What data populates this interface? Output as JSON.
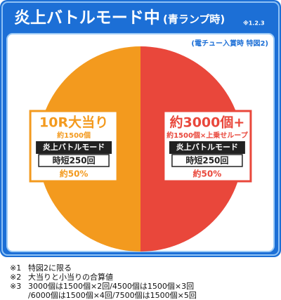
{
  "chart_data": {
    "type": "pie",
    "title": "炎上バトルモード中",
    "title_sub": "(青ランプ時)",
    "title_note": "※1.2.3",
    "subtitle": "(電チュー入賞時 特図2)",
    "categories": [
      "10R大当り",
      "約3000個+"
    ],
    "sublabels": [
      "約1500個",
      "約1500個×上乗せループ"
    ],
    "modes": [
      "炎上バトルモード",
      "炎上バトルモード"
    ],
    "jitan": [
      "時短250回",
      "時短250回"
    ],
    "values": [
      50,
      50
    ],
    "value_labels": [
      "約50%",
      "約50%"
    ],
    "colors": [
      "#f39a1e",
      "#e9473b"
    ],
    "notes": [
      {
        "mark": "※1",
        "lines": [
          "特図2に限る"
        ]
      },
      {
        "mark": "※2",
        "lines": [
          "大当りと小当りの合算値"
        ]
      },
      {
        "mark": "※3",
        "lines": [
          "3000個は1500個×2回/4500個は1500個×3回",
          "/6000個は1500個×4回/7500個は1500個×5回"
        ]
      }
    ]
  }
}
